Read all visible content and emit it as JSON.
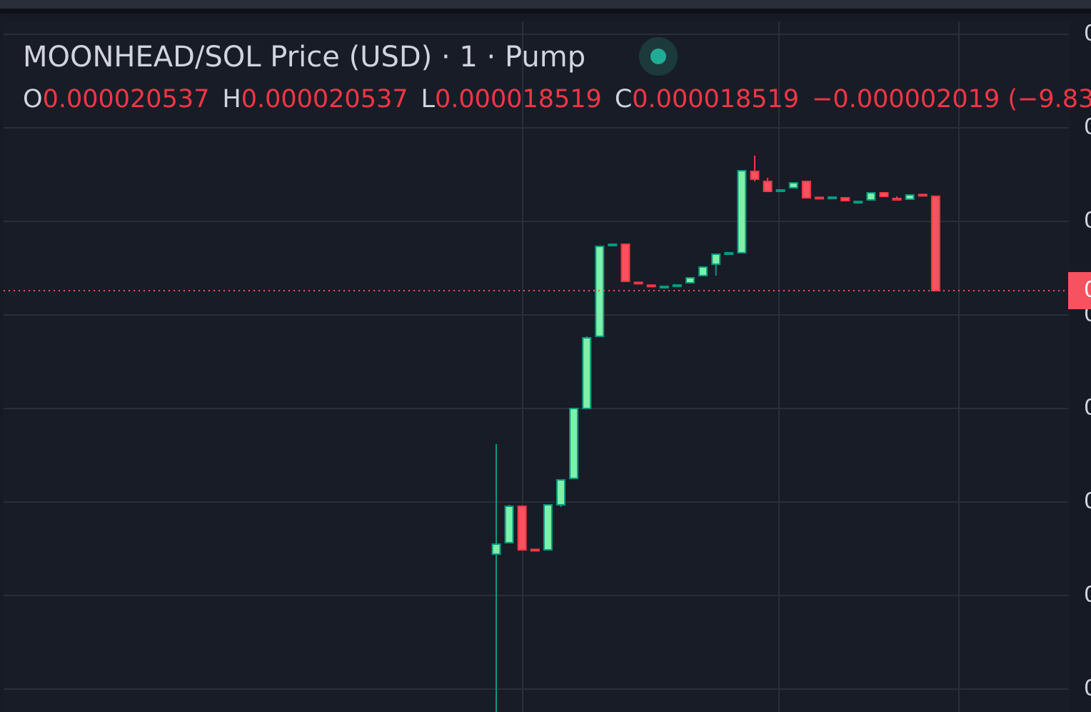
{
  "chart_data": {
    "type": "candlestick",
    "title": "MOONHEAD/SOL Price (USD) · 1 · Pump",
    "legend": {
      "open_label": "O",
      "high_label": "H",
      "low_label": "L",
      "close_label": "C",
      "change_text": "−0.000002019 (−9.83…"
    },
    "up_color": "#089981",
    "up_fill": "#7ef0a8",
    "down_color": "#f23645",
    "down_fill": "#f7525f",
    "open": [
      1.2885e-05,
      1.313e-05,
      1.3908e-05,
      1.2987e-05,
      1.2977e-05,
      1.3939e-05,
      1.4504e-05,
      1.6e-05,
      1.7542e-05,
      1.9511e-05,
      1.9511e-05,
      1.8697e-05,
      1.8636e-05,
      1.8611e-05,
      1.8641e-05,
      1.8687e-05,
      1.884e-05,
      1.9084e-05,
      1.9328e-05,
      1.9328e-05,
      2.1069e-05,
      2.0855e-05,
      2.0672e-05,
      2.0718e-05,
      2.0855e-05,
      2.0514e-05,
      2.0519e-05,
      2.0504e-05,
      2.0427e-05,
      2.0458e-05,
      2.0611e-05,
      2.0489e-05,
      2.0473e-05,
      2.0575e-05,
      2.0537e-05
    ],
    "high": [
      1.5237e-05,
      1.3939e-05,
      1.3924e-05,
      1.2987e-05,
      1.3939e-05,
      1.4473e-05,
      1.6e-05,
      1.7542e-05,
      1.9466e-05,
      1.9511e-05,
      1.9511e-05,
      1.8697e-05,
      1.8636e-05,
      1.8611e-05,
      1.8641e-05,
      1.8794e-05,
      1.9023e-05,
      1.9298e-05,
      1.9328e-05,
      2.1084e-05,
      2.1405e-05,
      2.0931e-05,
      2.0672e-05,
      2.0824e-05,
      2.0855e-05,
      2.0514e-05,
      2.0519e-05,
      2.0504e-05,
      2.0427e-05,
      2.0611e-05,
      2.0611e-05,
      2.0534e-05,
      2.0565e-05,
      2.0575e-05,
      2.0537e-05
    ],
    "low": [
      9.51e-06,
      1.313e-05,
      1.2977e-05,
      1.2977e-05,
      1.2977e-05,
      1.3893e-05,
      1.4504e-05,
      1.6e-05,
      1.7542e-05,
      1.9511e-05,
      1.8718e-05,
      1.8687e-05,
      1.8626e-05,
      1.8611e-05,
      1.8641e-05,
      1.8687e-05,
      1.884e-05,
      1.884e-05,
      1.9328e-05,
      1.9328e-05,
      2.0855e-05,
      2.0641e-05,
      2.0672e-05,
      2.0718e-05,
      2.0504e-05,
      2.0504e-05,
      2.0519e-05,
      2.0443e-05,
      2.0427e-05,
      2.0458e-05,
      2.0534e-05,
      2.0458e-05,
      2.0473e-05,
      2.0565e-05,
      1.8519e-05
    ],
    "close": [
      1.3099e-05,
      1.3908e-05,
      1.2977e-05,
      1.2977e-05,
      1.3939e-05,
      1.4473e-05,
      1.6e-05,
      1.7511e-05,
      1.9466e-05,
      1.9511e-05,
      1.8718e-05,
      1.8687e-05,
      1.8626e-05,
      1.8611e-05,
      1.8641e-05,
      1.8794e-05,
      1.9023e-05,
      1.9298e-05,
      1.9328e-05,
      2.1084e-05,
      2.0901e-05,
      2.0641e-05,
      2.0672e-05,
      2.0824e-05,
      2.0504e-05,
      2.0504e-05,
      2.0519e-05,
      2.0443e-05,
      2.0427e-05,
      2.0611e-05,
      2.0534e-05,
      2.0458e-05,
      2.0565e-05,
      2.0565e-05,
      1.8519e-05
    ],
    "ylim": [
      9.51e-06,
      2.4275e-05
    ],
    "yticks": [
      {
        "value": 1e-05,
        "label": "0"
      },
      {
        "value": 1.2e-05,
        "label": "0"
      },
      {
        "value": 1.4e-05,
        "label": "0"
      },
      {
        "value": 1.6e-05,
        "label": "0"
      },
      {
        "value": 1.8e-05,
        "label": "0"
      },
      {
        "value": 2e-05,
        "label": "0"
      },
      {
        "value": 2.2e-05,
        "label": "0"
      },
      {
        "value": 2.4e-05,
        "label": "0"
      }
    ],
    "last_price": {
      "value": 1.8519e-05,
      "label": "0"
    },
    "grid": true
  }
}
